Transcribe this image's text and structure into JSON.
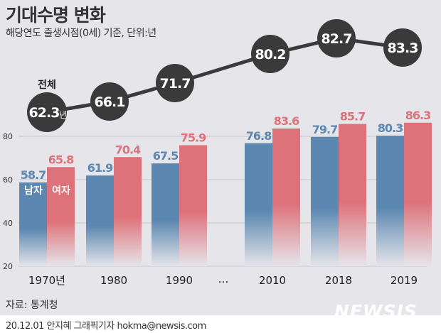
{
  "title": "기대수명 변화",
  "subtitle": "해당연도 출생시점(0세) 기준, 단위:년",
  "source": "자료: 통계청",
  "credit": "20.12.01 안지혜 그래픽기자 hokma@newsis.com",
  "logo": "NEWSIS",
  "chart_data": {
    "type": "bar",
    "categories": [
      "1970년",
      "1980",
      "1990",
      "2010",
      "2018",
      "2019"
    ],
    "axis_break_label": "…",
    "ylim": [
      20,
      90
    ],
    "yticks": [
      20,
      40,
      60,
      80
    ],
    "series": [
      {
        "name": "남자",
        "values": [
          58.7,
          61.9,
          67.5,
          76.8,
          79.7,
          80.3
        ],
        "color": "#5b87b0"
      },
      {
        "name": "여자",
        "values": [
          65.8,
          70.4,
          75.9,
          83.6,
          85.7,
          86.3
        ],
        "color": "#de727a"
      }
    ],
    "total": {
      "name": "전체",
      "values": [
        62.3,
        66.1,
        71.7,
        80.2,
        82.7,
        83.3
      ],
      "unit": "년",
      "type": "line",
      "color": "#3a3a3a"
    }
  }
}
